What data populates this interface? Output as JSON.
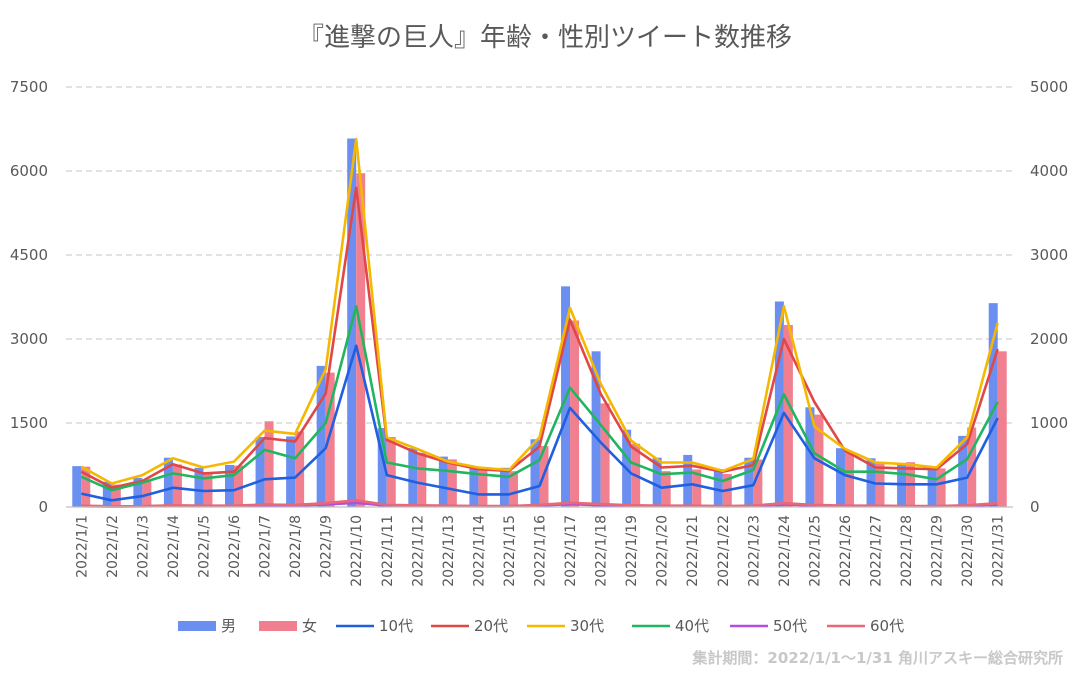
{
  "chart_data": {
    "type": "bar+line",
    "title": "『進撃の巨人』年齢・性別ツイート数推移",
    "source": "集計期間：2022/1/1〜1/31 角川アスキー総合研究所",
    "categories": [
      "2022/1/1",
      "2022/1/2",
      "2022/1/3",
      "2022/1/4",
      "2022/1/5",
      "2022/1/6",
      "2022/1/7",
      "2022/1/8",
      "2022/1/9",
      "2022/1/10",
      "2022/1/11",
      "2022/1/12",
      "2022/1/13",
      "2022/1/14",
      "2022/1/15",
      "2022/1/16",
      "2022/1/17",
      "2022/1/18",
      "2022/1/19",
      "2022/1/20",
      "2022/1/21",
      "2022/1/22",
      "2022/1/23",
      "2022/1/24",
      "2022/1/25",
      "2022/1/26",
      "2022/1/27",
      "2022/1/28",
      "2022/1/29",
      "2022/1/30",
      "2022/1/31"
    ],
    "left_axis": {
      "ylim": [
        0,
        7500
      ],
      "ticks": [
        "0",
        "1500",
        "3000",
        "4500",
        "6000",
        "7500"
      ]
    },
    "right_axis": {
      "ylim": [
        0,
        5000
      ],
      "ticks": [
        "0",
        "1000",
        "2000",
        "3000",
        "4000",
        "5000"
      ]
    },
    "bar_series": [
      {
        "name": "男",
        "color": "#6b8ff0",
        "axis": "left",
        "values": [
          730,
          450,
          520,
          880,
          700,
          750,
          1250,
          1260,
          2520,
          6580,
          1410,
          1050,
          900,
          720,
          700,
          1210,
          3940,
          2780,
          1380,
          880,
          930,
          680,
          880,
          3670,
          1780,
          1050,
          870,
          780,
          710,
          1270,
          3640
        ]
      },
      {
        "name": "女",
        "color": "#f08090",
        "axis": "left",
        "values": [
          720,
          400,
          480,
          760,
          620,
          740,
          1530,
          1350,
          2400,
          5960,
          1250,
          970,
          850,
          650,
          640,
          1090,
          3330,
          1850,
          1130,
          640,
          670,
          590,
          850,
          3250,
          1650,
          980,
          800,
          800,
          690,
          1420,
          2780
        ]
      }
    ],
    "line_series": [
      {
        "name": "10代",
        "color": "#1f5fe0",
        "axis": "right",
        "values": [
          160,
          80,
          130,
          230,
          190,
          200,
          330,
          350,
          700,
          1920,
          380,
          290,
          220,
          150,
          150,
          250,
          1180,
          770,
          400,
          230,
          270,
          190,
          260,
          1120,
          580,
          380,
          280,
          270,
          270,
          350,
          1060
        ]
      },
      {
        "name": "20代",
        "color": "#e04848",
        "axis": "right",
        "values": [
          420,
          230,
          310,
          510,
          400,
          420,
          820,
          780,
          1350,
          3800,
          800,
          640,
          530,
          450,
          430,
          720,
          2230,
          1350,
          720,
          470,
          490,
          420,
          500,
          2000,
          1250,
          670,
          470,
          460,
          450,
          750,
          1880
        ]
      },
      {
        "name": "30代",
        "color": "#f5b800",
        "axis": "right",
        "values": [
          480,
          280,
          380,
          580,
          470,
          540,
          910,
          870,
          1640,
          4380,
          830,
          690,
          540,
          470,
          440,
          830,
          2370,
          1470,
          790,
          530,
          530,
          430,
          570,
          2390,
          960,
          690,
          530,
          510,
          470,
          830,
          2190
        ]
      },
      {
        "name": "40代",
        "color": "#22b560",
        "axis": "right",
        "values": [
          360,
          200,
          290,
          400,
          340,
          380,
          680,
          580,
          1000,
          2390,
          530,
          460,
          430,
          390,
          360,
          560,
          1420,
          980,
          530,
          390,
          410,
          310,
          440,
          1340,
          640,
          420,
          420,
          390,
          330,
          570,
          1250
        ]
      },
      {
        "name": "50代",
        "color": "#b04ee0",
        "axis": "right",
        "values": [
          10,
          5,
          8,
          12,
          10,
          10,
          20,
          15,
          30,
          50,
          15,
          12,
          10,
          8,
          8,
          15,
          35,
          20,
          12,
          10,
          10,
          8,
          10,
          30,
          15,
          10,
          10,
          8,
          8,
          12,
          30
        ]
      },
      {
        "name": "60代",
        "color": "#e86878",
        "axis": "right",
        "values": [
          15,
          8,
          10,
          20,
          15,
          15,
          30,
          25,
          45,
          80,
          25,
          20,
          15,
          12,
          12,
          25,
          50,
          35,
          20,
          15,
          15,
          12,
          15,
          45,
          25,
          15,
          15,
          12,
          12,
          20,
          45
        ]
      }
    ]
  }
}
